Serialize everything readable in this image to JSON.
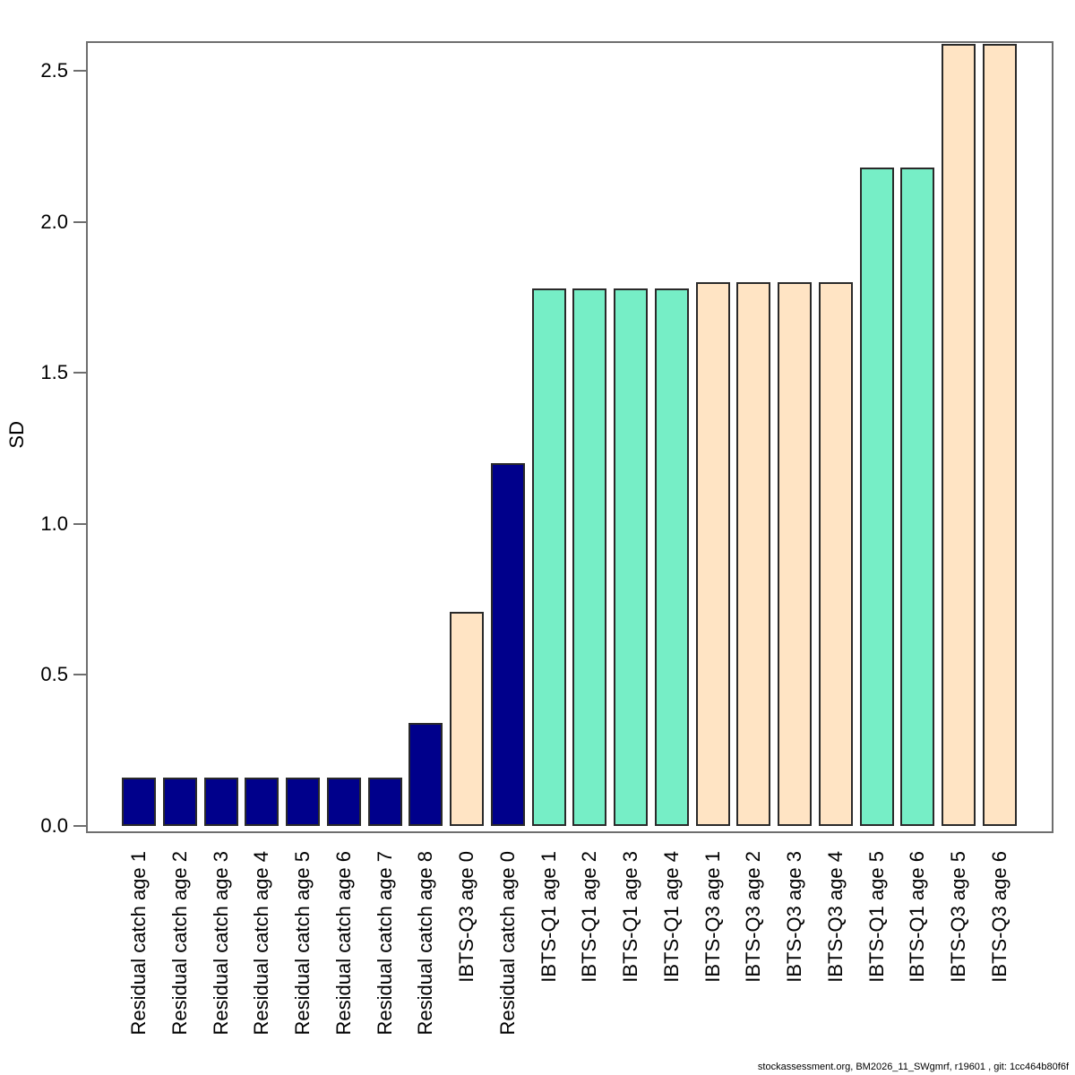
{
  "chart_data": {
    "type": "bar",
    "title": "",
    "xlabel": "",
    "ylabel": "SD",
    "ylim": [
      0,
      2.6
    ],
    "grid": false,
    "legend": false,
    "yticks": [
      "0.0",
      "0.5",
      "1.0",
      "1.5",
      "2.0",
      "2.5"
    ],
    "categories": [
      "Residual catch age 1",
      "Residual catch age 2",
      "Residual catch age 3",
      "Residual catch age 4",
      "Residual catch age 5",
      "Residual catch age 6",
      "Residual catch age 7",
      "Residual catch age 8",
      "IBTS-Q3 age 0",
      "Residual catch age 0",
      "IBTS-Q1 age 1",
      "IBTS-Q1 age 2",
      "IBTS-Q1 age 3",
      "IBTS-Q1 age 4",
      "IBTS-Q3 age 1",
      "IBTS-Q3 age 2",
      "IBTS-Q3 age 3",
      "IBTS-Q3 age 4",
      "IBTS-Q1 age 5",
      "IBTS-Q1 age 6",
      "IBTS-Q3 age 5",
      "IBTS-Q3 age 6"
    ],
    "values": [
      0.16,
      0.16,
      0.16,
      0.16,
      0.16,
      0.16,
      0.16,
      0.34,
      0.71,
      1.2,
      1.78,
      1.78,
      1.78,
      1.78,
      1.8,
      1.8,
      1.8,
      1.8,
      2.18,
      2.18,
      2.59,
      2.59
    ],
    "bar_groups": [
      "residual_catch",
      "residual_catch",
      "residual_catch",
      "residual_catch",
      "residual_catch",
      "residual_catch",
      "residual_catch",
      "residual_catch",
      "ibts_q3",
      "residual_catch",
      "ibts_q1",
      "ibts_q1",
      "ibts_q1",
      "ibts_q1",
      "ibts_q3",
      "ibts_q3",
      "ibts_q3",
      "ibts_q3",
      "ibts_q1",
      "ibts_q1",
      "ibts_q3",
      "ibts_q3"
    ],
    "series_colors": {
      "residual_catch": "#00008B",
      "ibts_q1": "#76EEC6",
      "ibts_q3": "#FFE4C4"
    }
  },
  "footer": {
    "text": "stockassessment.org, BM2026_11_SWgmrf, r19601 , git: 1cc464b80f6f"
  }
}
